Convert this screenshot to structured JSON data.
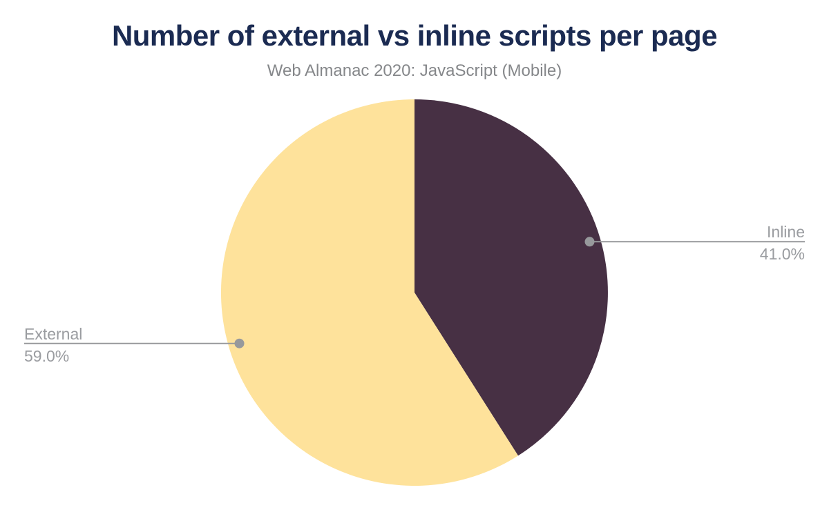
{
  "chart_data": {
    "type": "pie",
    "title": "Number of external vs inline scripts per page",
    "subtitle": "Web Almanac 2020: JavaScript (Mobile)",
    "unit": "percent",
    "total": 100,
    "start_angle_deg": 0,
    "direction": "clockwise",
    "legend_position": "none",
    "label_style": "leader-lines",
    "slices": [
      {
        "label": "Inline",
        "value": 41.0,
        "display": "41.0%",
        "color": "#473044",
        "label_side": "right"
      },
      {
        "label": "External",
        "value": 59.0,
        "display": "59.0%",
        "color": "#FEE29B",
        "label_side": "left"
      }
    ],
    "style": {
      "background": "#FFFFFF",
      "title_color": "#1B2B52",
      "subtitle_color": "#85878A",
      "label_color": "#9A9CA0",
      "leader_line_color": "#97999C"
    }
  }
}
